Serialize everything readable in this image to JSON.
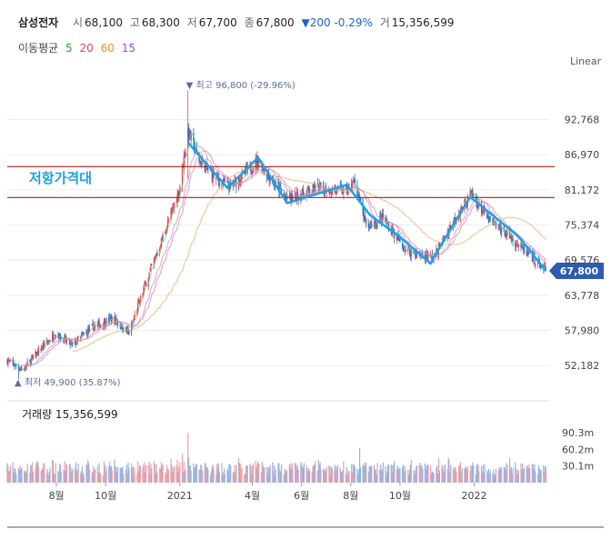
{
  "header": {
    "name": "삼성전자",
    "open_label": "시",
    "open": "68,100",
    "high_label": "고",
    "high": "68,300",
    "low_label": "저",
    "low": "67,700",
    "close_label": "종",
    "close": "67,800",
    "change": "▼200 -0.29%",
    "volume_label": "거",
    "volume": "15,356,599"
  },
  "ma": {
    "label": "이동평균",
    "items": [
      {
        "name": "5",
        "color": "#2ca02c"
      },
      {
        "name": "20",
        "color": "#e8464f"
      },
      {
        "name": "60",
        "color": "#f28c3a"
      },
      {
        "name": "15",
        "color": "#9b4bd6"
      }
    ]
  },
  "scale_label": "Linear",
  "chart_data": {
    "type": "candlestick",
    "x_ticks": [
      "8월",
      "10월",
      "2021",
      "4월",
      "6월",
      "8월",
      "10월",
      "2022"
    ],
    "y_ticks": [
      "92,768",
      "86,970",
      "81,172",
      "75,374",
      "69,576",
      "63,778",
      "57,980",
      "52,182"
    ],
    "ylim": [
      48000,
      99000
    ],
    "current_price": "67,800",
    "annotations": {
      "high": "최고 96,800 (-29.96%)",
      "low": "최저 49,900 (35.87%)",
      "resistance_label": "저항가격대",
      "resistance_levels": [
        85000,
        79900
      ]
    },
    "trend_path": [
      {
        "date": "2021-01-11",
        "price": 89000
      },
      {
        "date": "2021-03-01",
        "price": 81500
      },
      {
        "date": "2021-04-08",
        "price": 86500
      },
      {
        "date": "2021-05-14",
        "price": 79000
      },
      {
        "date": "2021-07-27",
        "price": 82000
      },
      {
        "date": "2021-08-25",
        "price": 77000
      },
      {
        "date": "2021-09-30",
        "price": 73500
      },
      {
        "date": "2021-11-08",
        "price": 69000
      },
      {
        "date": "2021-11-16",
        "price": 71000
      },
      {
        "date": "2021-12-27",
        "price": 80000
      },
      {
        "date": "2022-02-25",
        "price": 73500
      },
      {
        "date": "2022-03-31",
        "price": 67800
      }
    ],
    "volume": {
      "label": "거래량",
      "value": "15,356,599",
      "y_ticks": [
        "90.3m",
        "60.2m",
        "30.1m"
      ],
      "ylim": [
        0,
        100000000
      ]
    }
  }
}
